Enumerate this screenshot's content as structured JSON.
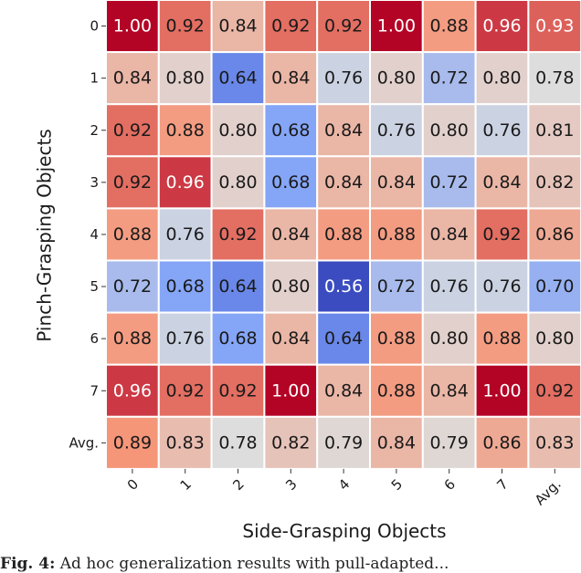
{
  "chart_data": {
    "type": "heatmap",
    "xlabel": "Side-Grasping Objects",
    "ylabel": "Pinch-Grasping Objects",
    "x_categories": [
      "0",
      "1",
      "2",
      "3",
      "4",
      "5",
      "6",
      "7",
      "Avg."
    ],
    "y_categories": [
      "0",
      "1",
      "2",
      "3",
      "4",
      "5",
      "6",
      "7",
      "Avg."
    ],
    "values": [
      [
        1.0,
        0.92,
        0.84,
        0.92,
        0.92,
        1.0,
        0.88,
        0.96,
        0.93
      ],
      [
        0.84,
        0.8,
        0.64,
        0.84,
        0.76,
        0.8,
        0.72,
        0.8,
        0.78
      ],
      [
        0.92,
        0.88,
        0.8,
        0.68,
        0.84,
        0.76,
        0.8,
        0.76,
        0.81
      ],
      [
        0.92,
        0.96,
        0.8,
        0.68,
        0.84,
        0.84,
        0.72,
        0.84,
        0.82
      ],
      [
        0.88,
        0.76,
        0.92,
        0.84,
        0.88,
        0.88,
        0.84,
        0.92,
        0.86
      ],
      [
        0.72,
        0.68,
        0.64,
        0.8,
        0.56,
        0.72,
        0.76,
        0.76,
        0.7
      ],
      [
        0.88,
        0.76,
        0.68,
        0.84,
        0.64,
        0.88,
        0.8,
        0.88,
        0.8
      ],
      [
        0.96,
        0.92,
        0.92,
        1.0,
        0.84,
        0.88,
        0.84,
        1.0,
        0.92
      ],
      [
        0.89,
        0.83,
        0.78,
        0.82,
        0.79,
        0.84,
        0.79,
        0.86,
        0.83
      ]
    ],
    "value_format": "2 decimals",
    "colormap": "coolwarm",
    "color_range": [
      0.56,
      1.0
    ],
    "grid": false,
    "legend": "none"
  },
  "caption": {
    "prefix": "Fig. 4:",
    "text": "Ad hoc generalization results with pull-adapted..."
  }
}
